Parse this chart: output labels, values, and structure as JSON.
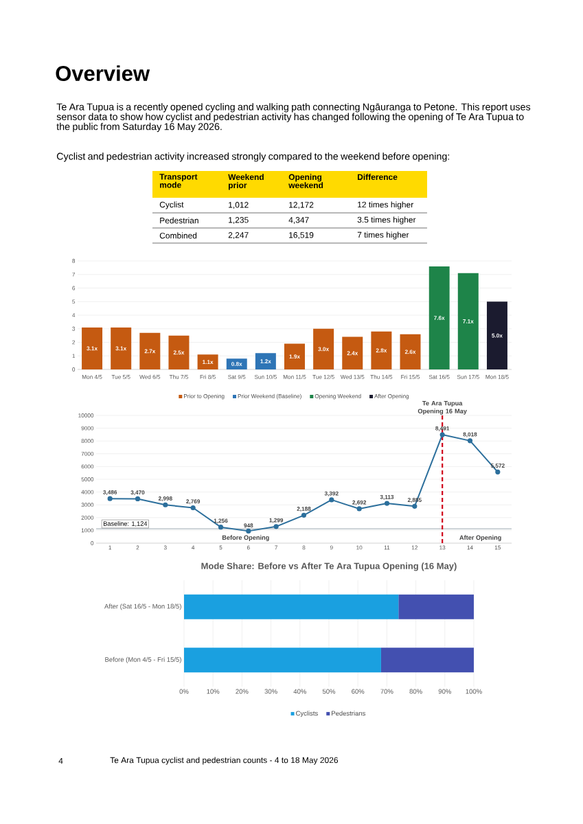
{
  "chart_data": [
    {
      "type": "other",
      "title": "Overview",
      "annotations": [
        "Te Ara Tupua is a recently opened cycling and walking path connecting Ngāuranga to Petone. This report uses sensor data to show how cyclist and pedestrian activity has changed following the opening of Te Ara Tupua to the public from Saturday 16 May 2026.",
        "Cyclist and pedestrian activity increased strongly compared to the weekend before opening:",
        "Transport mode",
        "Weekend prior",
        "Opening weekend",
        "Difference",
        "Cyclist",
        "1,012",
        "12,172",
        "12 times higher",
        "Pedestrian",
        "1,235",
        "4,347",
        "3.5 times higher",
        "Combined",
        "2,247",
        "16,519",
        "7 times higher",
        "4",
        "Te Ara Tupua cyclist and pedestrian counts - 4 to 18 May 2026"
      ]
    },
    {
      "type": "bar",
      "categories": [
        "Mon 4/5",
        "Tue 5/5",
        "Wed 6/5",
        "Thu 7/5",
        "Fri 8/5",
        "Sat 9/5",
        "Sun 10/5",
        "Mon 11/5",
        "Tue 12/5",
        "Wed 13/5",
        "Thu 14/5",
        "Fri 15/5",
        "Sat 16/5",
        "Sun 17/5",
        "Mon 18/5"
      ],
      "ylim": [
        0,
        8
      ],
      "yticks": [
        0,
        1,
        2,
        3,
        4,
        5,
        6,
        7,
        8
      ],
      "grid": "y",
      "legend": "bottom",
      "series": [
        {
          "name": "Prior to Opening",
          "color": "#c55a11",
          "values": [
            3.1,
            3.1,
            2.7,
            2.5,
            1.1,
            null,
            null,
            1.9,
            3.0,
            2.4,
            2.8,
            2.6,
            null,
            null,
            null
          ],
          "value_labels": [
            "3.1x",
            "3.1x",
            "2.7x",
            "2.5x",
            "1.1x",
            null,
            null,
            "1.9x",
            "3.0x",
            "2.4x",
            "2.8x",
            "2.6x",
            null,
            null,
            null
          ]
        },
        {
          "name": "Prior Weekend (Baseline)",
          "color": "#2e75b6",
          "values": [
            null,
            null,
            null,
            null,
            null,
            0.8,
            1.2,
            null,
            null,
            null,
            null,
            null,
            null,
            null,
            null
          ],
          "value_labels": [
            null,
            null,
            null,
            null,
            null,
            "0.8x",
            "1.2x",
            null,
            null,
            null,
            null,
            null,
            null,
            null,
            null
          ]
        },
        {
          "name": "Opening Weekend",
          "color": "#1e8449",
          "values": [
            null,
            null,
            null,
            null,
            null,
            null,
            null,
            null,
            null,
            null,
            null,
            null,
            7.6,
            7.1,
            null
          ],
          "value_labels": [
            null,
            null,
            null,
            null,
            null,
            null,
            null,
            null,
            null,
            null,
            null,
            null,
            "7.6x",
            "7.1x",
            null
          ]
        },
        {
          "name": "After Opening",
          "color": "#1b1b2f",
          "values": [
            null,
            null,
            null,
            null,
            null,
            null,
            null,
            null,
            null,
            null,
            null,
            null,
            null,
            null,
            5.0
          ],
          "value_labels": [
            null,
            null,
            null,
            null,
            null,
            null,
            null,
            null,
            null,
            null,
            null,
            null,
            null,
            null,
            "5.0x"
          ]
        }
      ]
    },
    {
      "type": "line",
      "x": [
        1,
        2,
        3,
        4,
        5,
        6,
        7,
        8,
        9,
        10,
        11,
        12,
        13,
        14,
        15
      ],
      "values": [
        3486,
        3470,
        2998,
        2769,
        1256,
        948,
        1299,
        2188,
        3392,
        2692,
        3113,
        2885,
        8491,
        8018,
        5572
      ],
      "value_labels": [
        "3,486",
        "3,470",
        "2,998",
        "2,769",
        "1,256",
        "948",
        "1,299",
        "2,188",
        "3,392",
        "2,692",
        "3,113",
        "2,885",
        "8,491",
        "8,018",
        "5,572"
      ],
      "color": "#2c6f9c",
      "marker": "circle",
      "xlim": [
        0.5,
        15.5
      ],
      "xticks": [
        1,
        2,
        3,
        4,
        5,
        6,
        7,
        8,
        9,
        10,
        11,
        12,
        13,
        14,
        15
      ],
      "ylim": [
        0,
        10000
      ],
      "yticks": [
        0,
        1000,
        2000,
        3000,
        4000,
        5000,
        6000,
        7000,
        8000,
        9000,
        10000
      ],
      "grid": "y",
      "ref_lines": [
        {
          "axis": "y",
          "value": 1124,
          "label": "Baseline: 1,124",
          "color": "#9aa8b0"
        },
        {
          "axis": "x",
          "value": 13,
          "label": "Te Ara Tupua Opening 16 May",
          "color": "#d0021b",
          "line_style": "dashed"
        }
      ],
      "annotations": [
        "Before Opening",
        "After Opening"
      ]
    },
    {
      "type": "bar",
      "orientation": "horizontal",
      "stacked": true,
      "title": "Mode Share: Before vs After Te Ara Tupua Opening (16 May)",
      "categories": [
        "After (Sat 16/5 - Mon 18/5)",
        "Before (Mon 4/5 - Fri 15/5)"
      ],
      "xlim": [
        0,
        100
      ],
      "xticks": [
        {
          "value": 0,
          "label": "0%"
        },
        {
          "value": 10,
          "label": "10%"
        },
        {
          "value": 20,
          "label": "20%"
        },
        {
          "value": 30,
          "label": "30%"
        },
        {
          "value": 40,
          "label": "40%"
        },
        {
          "value": 50,
          "label": "50%"
        },
        {
          "value": 60,
          "label": "60%"
        },
        {
          "value": 70,
          "label": "70%"
        },
        {
          "value": 80,
          "label": "80%"
        },
        {
          "value": 90,
          "label": "90%"
        },
        {
          "value": 100,
          "label": "100%"
        }
      ],
      "grid": "x",
      "legend": "bottom",
      "series": [
        {
          "name": "Cyclists",
          "color": "#1aa0e0",
          "values": [
            74,
            68
          ]
        },
        {
          "name": "Pedestrians",
          "color": "#4350b0",
          "values": [
            26,
            32
          ]
        }
      ]
    }
  ]
}
